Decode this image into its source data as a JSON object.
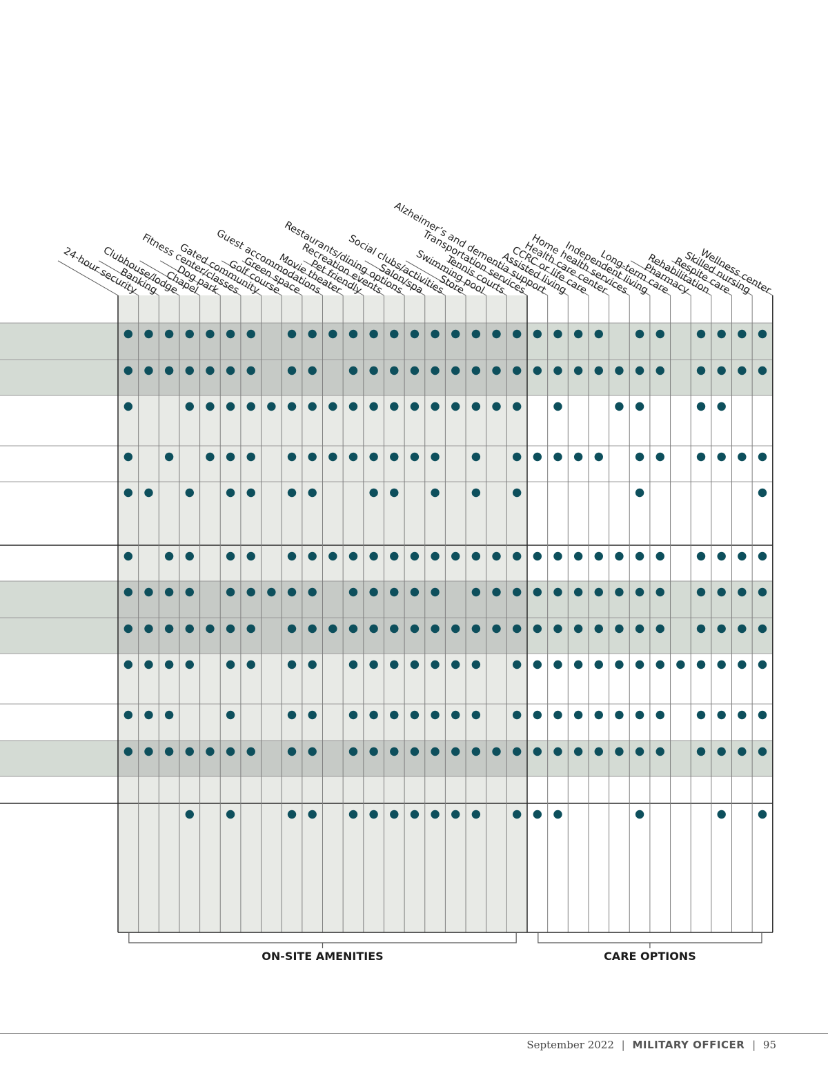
{
  "colors": {
    "dot": "#0d4f5c",
    "amenity_bg": "#e8eae6",
    "band_bg": "#d4dbd4",
    "band_over_amenity": "#c6cac6",
    "grid": "#7f7f7f",
    "frame": "#2a2a2a"
  },
  "columns": [
    "24-hour security",
    "Banking",
    "Clubhouse/lodge",
    "Chapel",
    "Dog park",
    "Fitness center/classes",
    "Gated community",
    "Golf course",
    "Green space",
    "Guest accommodations",
    "Movie theater",
    "Pet friendly",
    "Recreation events",
    "Restaurants/dining options",
    "Salon/spa",
    "Social clubs/activities",
    "Store",
    "Swimming pool",
    "Tennis courts",
    "Transportation services",
    "Alzheimer’s and dementia support",
    "Assisted living",
    "CCRC or life care",
    "Health care center",
    "Home health services",
    "Independent living",
    "Long-term care",
    "Pharmacy",
    "Rehabilitation",
    "Respite care",
    "Skilled nursing",
    "Wellness center"
  ],
  "groups": [
    {
      "label": "ON-SITE AMENITIES",
      "from": 0,
      "to": 19
    },
    {
      "label": "CARE OPTIONS",
      "from": 20,
      "to": 31
    }
  ],
  "rows": [
    {
      "shaded": true,
      "dots": [
        0,
        1,
        2,
        3,
        4,
        5,
        6,
        8,
        9,
        10,
        11,
        12,
        13,
        14,
        15,
        16,
        17,
        18,
        19,
        20,
        21,
        22,
        23,
        25,
        26,
        28,
        29,
        30,
        31
      ]
    },
    {
      "shaded": true,
      "dots": [
        0,
        1,
        2,
        3,
        4,
        5,
        6,
        8,
        9,
        11,
        12,
        13,
        14,
        15,
        16,
        17,
        18,
        19,
        20,
        21,
        22,
        23,
        24,
        25,
        26,
        28,
        29,
        30,
        31
      ]
    },
    {
      "shaded": false,
      "dots": [
        0,
        3,
        4,
        5,
        6,
        7,
        8,
        9,
        10,
        11,
        12,
        13,
        14,
        15,
        16,
        17,
        18,
        19,
        21,
        24,
        25,
        28,
        29
      ]
    },
    {
      "shaded": false,
      "dots": [
        0,
        2,
        4,
        5,
        6,
        8,
        9,
        10,
        11,
        12,
        13,
        14,
        15,
        17,
        19,
        20,
        21,
        22,
        23,
        25,
        26,
        28,
        29,
        30,
        31
      ]
    },
    {
      "shaded": false,
      "dots": [
        0,
        1,
        3,
        5,
        6,
        8,
        9,
        12,
        13,
        15,
        17,
        19,
        25,
        31
      ]
    },
    {
      "shaded": false,
      "dots": [
        0,
        2,
        3,
        5,
        6,
        8,
        9,
        10,
        11,
        12,
        13,
        14,
        15,
        16,
        17,
        18,
        19,
        20,
        21,
        22,
        23,
        24,
        25,
        26,
        28,
        29,
        30,
        31
      ]
    },
    {
      "shaded": true,
      "dots": [
        0,
        1,
        2,
        3,
        5,
        6,
        7,
        8,
        9,
        11,
        12,
        13,
        14,
        15,
        17,
        18,
        19,
        20,
        21,
        22,
        23,
        24,
        25,
        26,
        28,
        29,
        30,
        31
      ]
    },
    {
      "shaded": true,
      "dots": [
        0,
        1,
        2,
        3,
        4,
        5,
        6,
        8,
        9,
        10,
        11,
        12,
        13,
        14,
        15,
        16,
        17,
        18,
        19,
        20,
        21,
        22,
        23,
        24,
        25,
        26,
        28,
        29,
        30,
        31
      ]
    },
    {
      "shaded": false,
      "dots": [
        0,
        1,
        2,
        3,
        5,
        6,
        8,
        9,
        11,
        12,
        13,
        14,
        15,
        16,
        17,
        19,
        20,
        21,
        22,
        23,
        24,
        25,
        26,
        27,
        28,
        29,
        30,
        31
      ]
    },
    {
      "shaded": false,
      "dots": [
        0,
        1,
        2,
        5,
        8,
        9,
        11,
        12,
        13,
        14,
        15,
        16,
        17,
        19,
        20,
        21,
        22,
        23,
        24,
        25,
        26,
        28,
        29,
        30,
        31
      ]
    },
    {
      "shaded": true,
      "dots": [
        0,
        1,
        2,
        3,
        4,
        5,
        6,
        8,
        9,
        11,
        12,
        13,
        14,
        15,
        16,
        17,
        18,
        19,
        20,
        21,
        22,
        23,
        24,
        25,
        26,
        28,
        29,
        30,
        31
      ]
    },
    {
      "shaded": false,
      "dots": [
        3,
        5,
        8,
        9,
        11,
        12,
        13,
        14,
        15,
        16,
        17,
        19,
        20,
        21,
        25,
        29,
        31
      ]
    }
  ],
  "footer": {
    "date": "September 2022",
    "separator": "|",
    "magazine": "MILITARY OFFICER",
    "page": "95"
  }
}
